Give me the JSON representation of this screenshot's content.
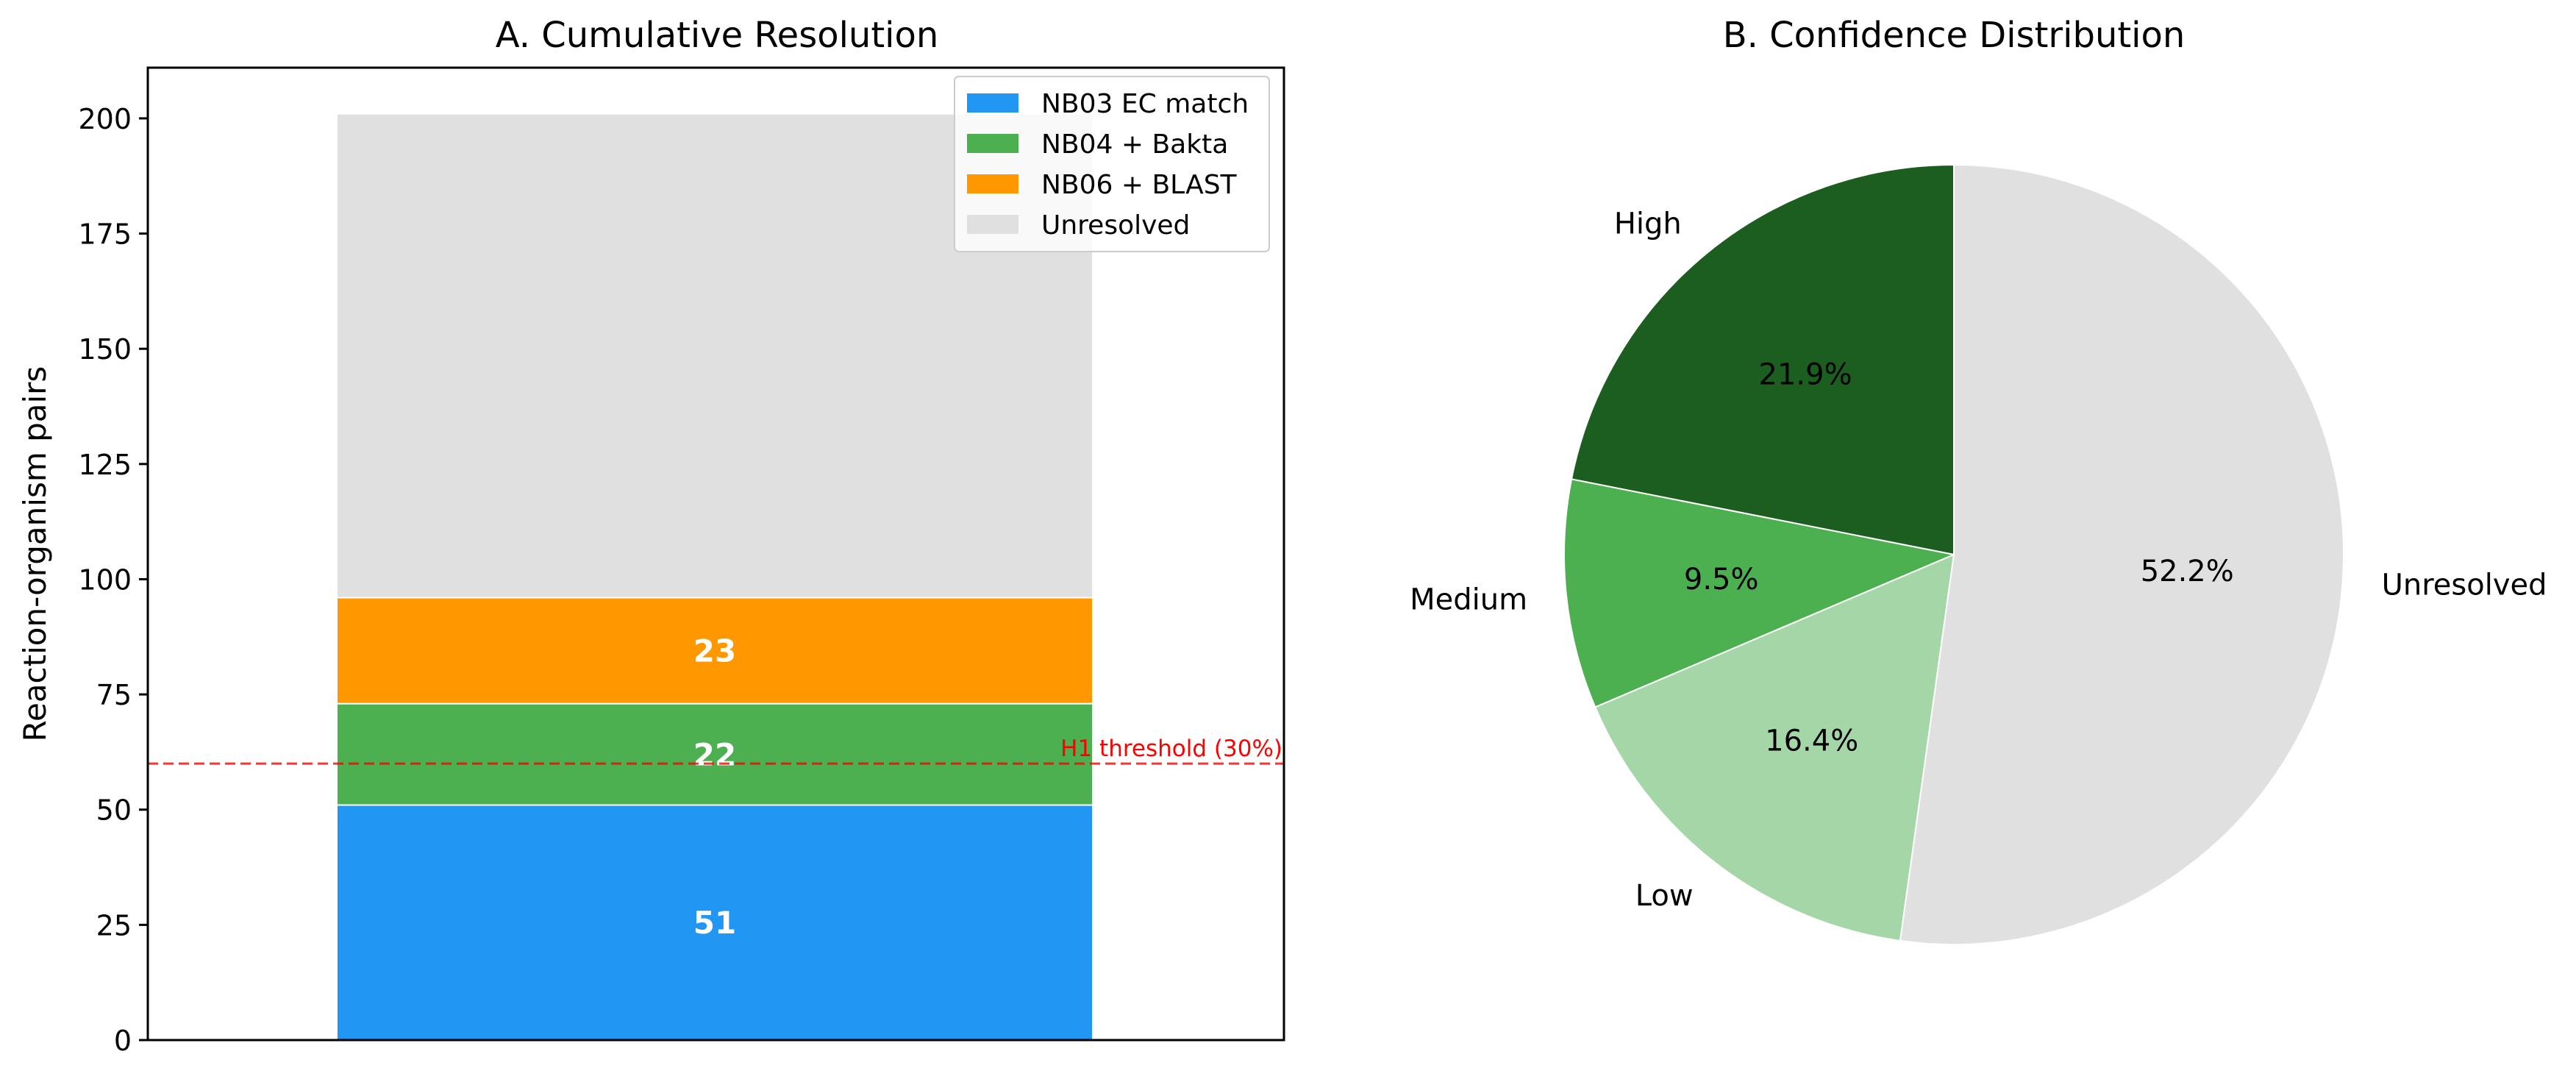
{
  "chart_data": [
    {
      "type": "bar",
      "stacked": true,
      "title": "A. Cumulative Resolution",
      "xlabel": "",
      "ylabel": "Reaction-organism pairs",
      "ylim": [
        0,
        211
      ],
      "yticks": [
        0,
        25,
        50,
        75,
        100,
        125,
        150,
        175,
        200
      ],
      "series": [
        {
          "name": "NB03 EC match",
          "value": 51,
          "color": "#2196F3",
          "label": "51"
        },
        {
          "name": "NB04 + Bakta",
          "value": 22,
          "color": "#4CAF50",
          "label": "22"
        },
        {
          "name": "NB06 + BLAST",
          "value": 23,
          "color": "#FF9800",
          "label": "23"
        },
        {
          "name": "Unresolved",
          "value": 105,
          "color": "#E0E0E0",
          "label": ""
        }
      ],
      "reference_line": {
        "value": 60,
        "label": "H1 threshold (30%)",
        "color": "#FF0000",
        "style": "dashed"
      },
      "legend": "top-right",
      "grid": false
    },
    {
      "type": "pie",
      "title": "B. Confidence Distribution",
      "slices": [
        {
          "label": "High",
          "value": 21.9,
          "pct": "21.9%",
          "color": "#1B5E20"
        },
        {
          "label": "Medium",
          "value": 9.5,
          "pct": "9.5%",
          "color": "#4CAF50"
        },
        {
          "label": "Low",
          "value": 16.4,
          "pct": "16.4%",
          "color": "#A5D6A7"
        },
        {
          "label": "Unresolved",
          "value": 52.2,
          "pct": "52.2%",
          "color": "#E0E0E0"
        }
      ],
      "start_angle_deg": 90,
      "direction": "counterclockwise"
    }
  ]
}
